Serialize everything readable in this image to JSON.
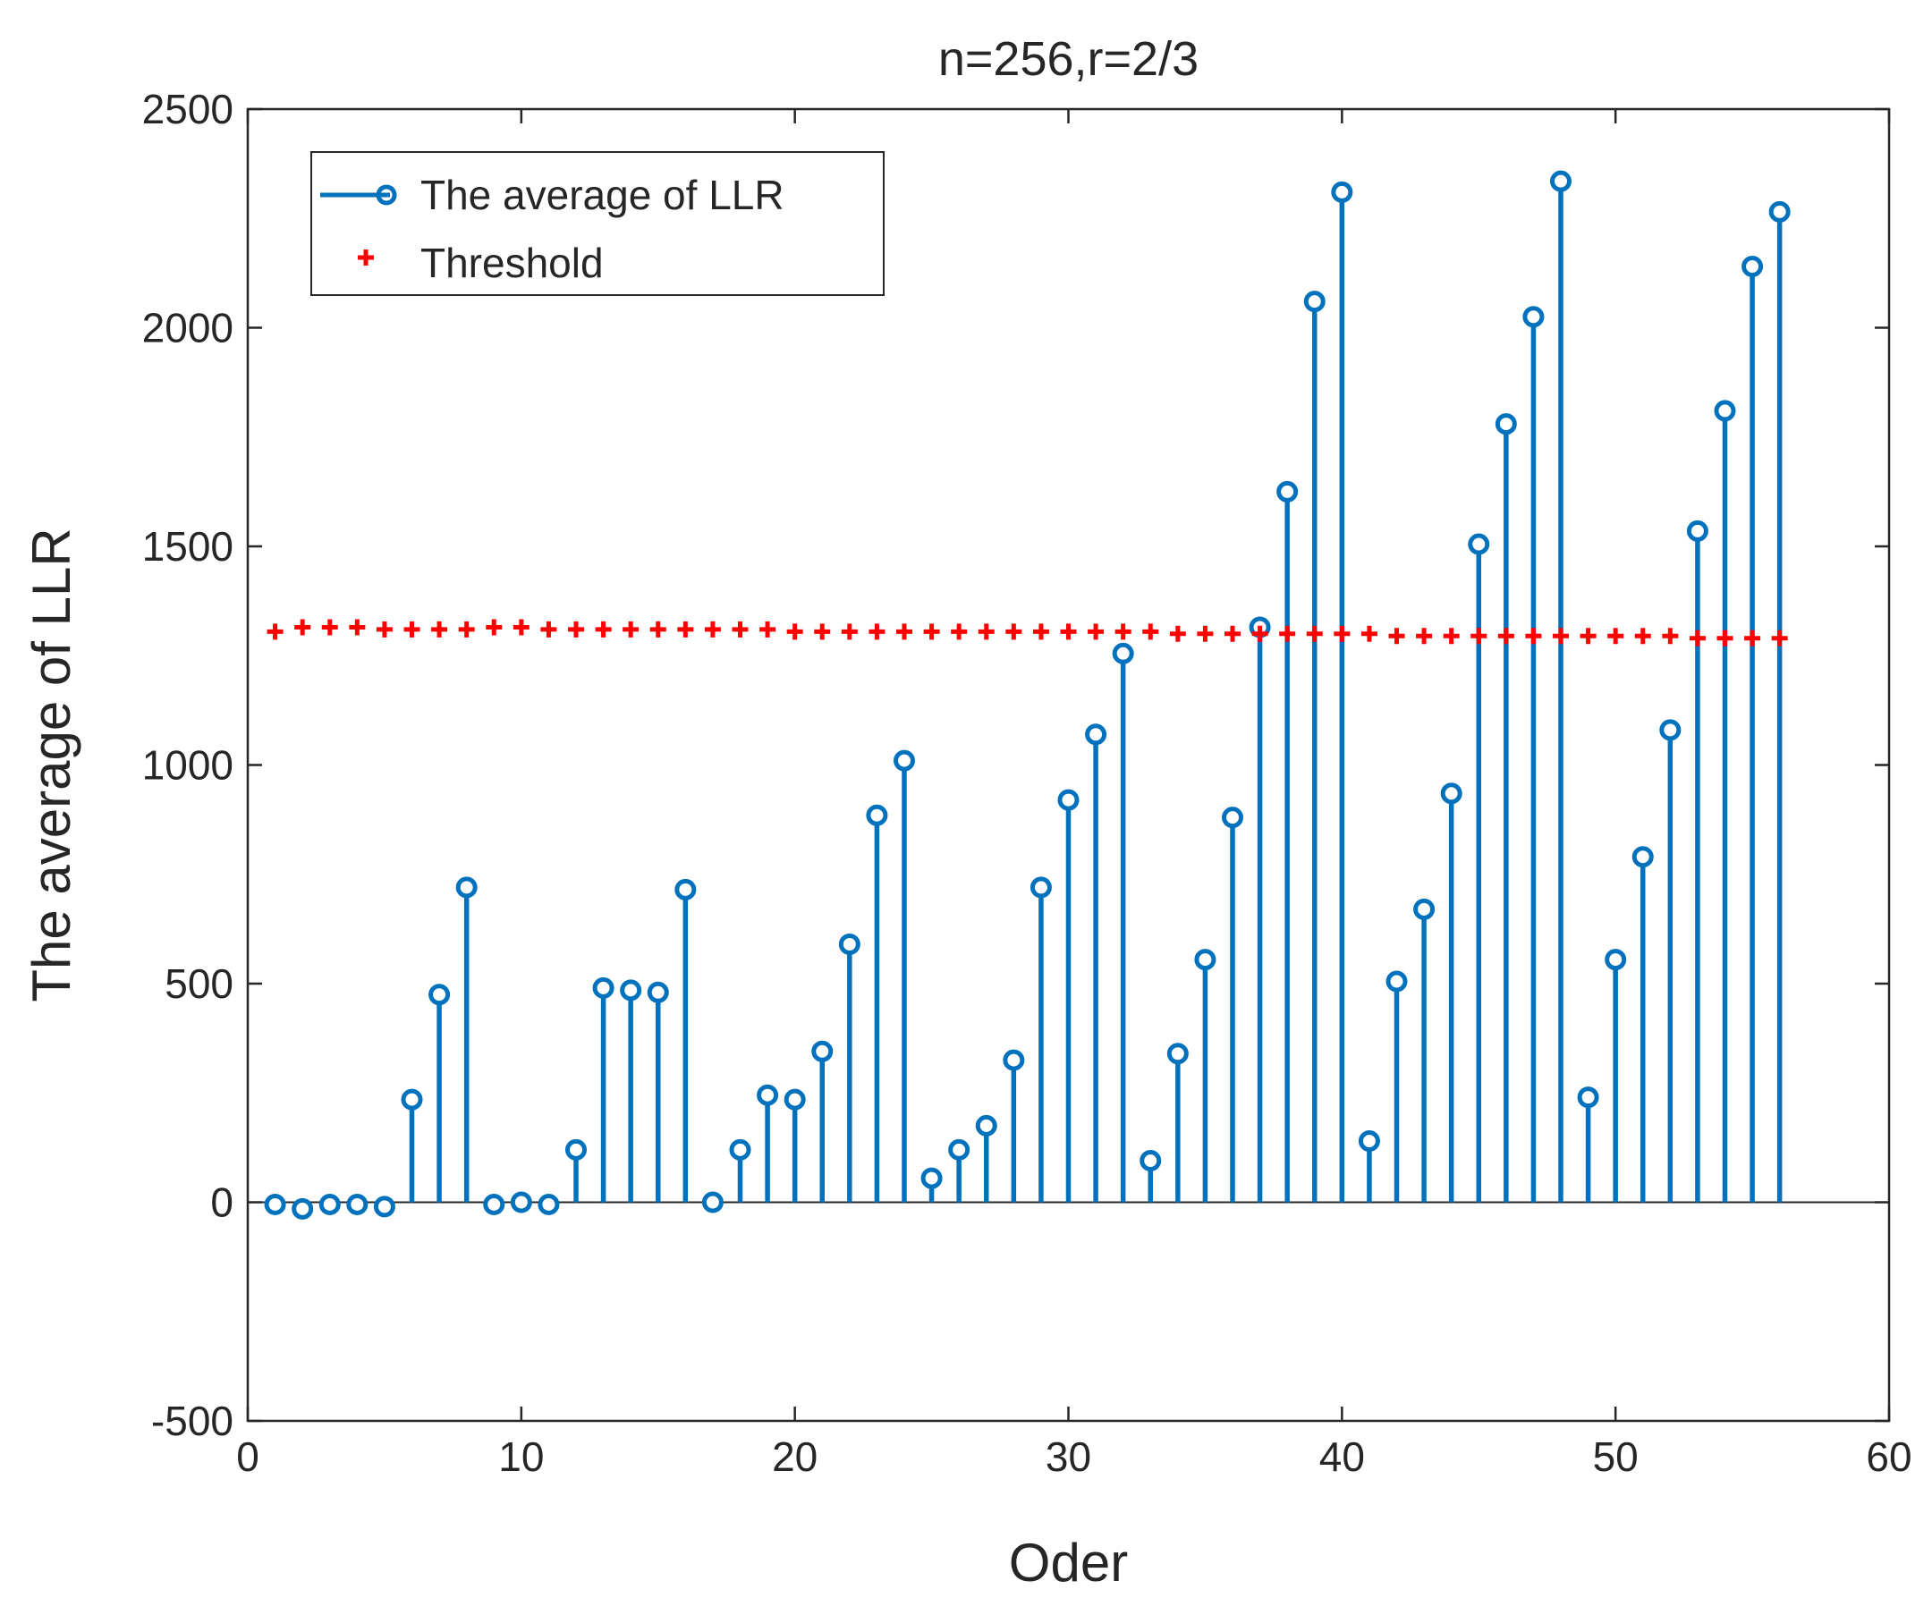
{
  "chart_data": {
    "type": "stem",
    "title": "n=256,r=2/3",
    "xlabel": "Oder",
    "ylabel": "The average of LLR",
    "xlim": [
      0,
      60
    ],
    "ylim": [
      -500,
      2500
    ],
    "xticks": [
      "0",
      "10",
      "20",
      "30",
      "40",
      "50",
      "60"
    ],
    "yticks": [
      "-500",
      "0",
      "500",
      "1000",
      "1500",
      "2000",
      "2500"
    ],
    "legend_position": "top-left",
    "colors": {
      "stem": "#0072BD",
      "threshold": "#FF0000",
      "axis": "#262626"
    },
    "series": [
      {
        "name": "The average of LLR",
        "style": "stem",
        "x": [
          1,
          2,
          3,
          4,
          5,
          6,
          7,
          8,
          9,
          10,
          11,
          12,
          13,
          14,
          15,
          16,
          17,
          18,
          19,
          20,
          21,
          22,
          23,
          24,
          25,
          26,
          27,
          28,
          29,
          30,
          31,
          32,
          33,
          34,
          35,
          36,
          37,
          38,
          39,
          40,
          41,
          42,
          43,
          44,
          45,
          46,
          47,
          48,
          49,
          50,
          51,
          52,
          53,
          54,
          55,
          56
        ],
        "values": [
          -5,
          -15,
          -5,
          -5,
          -10,
          235,
          475,
          720,
          -5,
          0,
          -5,
          120,
          490,
          485,
          480,
          715,
          0,
          120,
          245,
          235,
          345,
          590,
          885,
          1010,
          55,
          120,
          175,
          325,
          720,
          920,
          1070,
          1255,
          95,
          340,
          555,
          880,
          1315,
          1625,
          2060,
          2310,
          140,
          505,
          670,
          935,
          1505,
          1780,
          2025,
          2335,
          240,
          555,
          790,
          1080,
          1535,
          1810,
          2140,
          2265
        ]
      },
      {
        "name": "Threshold",
        "style": "marker-plus",
        "x": [
          1,
          2,
          3,
          4,
          5,
          6,
          7,
          8,
          9,
          10,
          11,
          12,
          13,
          14,
          15,
          16,
          17,
          18,
          19,
          20,
          21,
          22,
          23,
          24,
          25,
          26,
          27,
          28,
          29,
          30,
          31,
          32,
          33,
          34,
          35,
          36,
          37,
          38,
          39,
          40,
          41,
          42,
          43,
          44,
          45,
          46,
          47,
          48,
          49,
          50,
          51,
          52,
          53,
          54,
          55,
          56
        ],
        "values": [
          1305,
          1315,
          1315,
          1315,
          1310,
          1310,
          1310,
          1310,
          1315,
          1315,
          1310,
          1310,
          1310,
          1310,
          1310,
          1310,
          1310,
          1310,
          1310,
          1305,
          1305,
          1305,
          1305,
          1305,
          1305,
          1305,
          1305,
          1305,
          1305,
          1305,
          1305,
          1305,
          1305,
          1300,
          1300,
          1300,
          1300,
          1300,
          1300,
          1300,
          1300,
          1295,
          1295,
          1295,
          1295,
          1295,
          1295,
          1295,
          1295,
          1295,
          1295,
          1295,
          1290,
          1290,
          1290,
          1290
        ]
      }
    ]
  }
}
